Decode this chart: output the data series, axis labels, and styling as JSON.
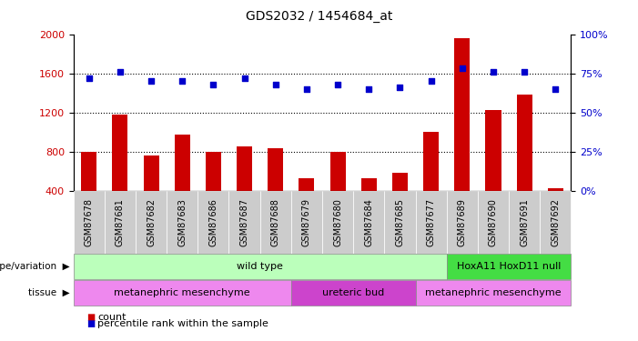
{
  "title": "GDS2032 / 1454684_at",
  "samples": [
    "GSM87678",
    "GSM87681",
    "GSM87682",
    "GSM87683",
    "GSM87686",
    "GSM87687",
    "GSM87688",
    "GSM87679",
    "GSM87680",
    "GSM87684",
    "GSM87685",
    "GSM87677",
    "GSM87689",
    "GSM87690",
    "GSM87691",
    "GSM87692"
  ],
  "counts": [
    800,
    1175,
    760,
    975,
    800,
    850,
    840,
    530,
    800,
    530,
    590,
    1000,
    1960,
    1230,
    1380,
    430
  ],
  "percentile_ranks": [
    72,
    76,
    70,
    70,
    68,
    72,
    68,
    65,
    68,
    65,
    66,
    70,
    78,
    76,
    76,
    65
  ],
  "ylim_left": [
    400,
    2000
  ],
  "ylim_right": [
    0,
    100
  ],
  "yticks_left": [
    400,
    800,
    1200,
    1600,
    2000
  ],
  "yticks_right": [
    0,
    25,
    50,
    75,
    100
  ],
  "bar_color": "#cc0000",
  "dot_color": "#0000cc",
  "bar_width": 0.5,
  "genotype_groups": [
    {
      "label": "wild type",
      "start": 0,
      "end": 11,
      "color": "#bbffbb"
    },
    {
      "label": "HoxA11 HoxD11 null",
      "start": 12,
      "end": 15,
      "color": "#44dd44"
    }
  ],
  "tissue_groups": [
    {
      "label": "metanephric mesenchyme",
      "start": 0,
      "end": 6,
      "color": "#ee88ee"
    },
    {
      "label": "ureteric bud",
      "start": 7,
      "end": 10,
      "color": "#cc44cc"
    },
    {
      "label": "metanephric mesenchyme",
      "start": 11,
      "end": 15,
      "color": "#ee88ee"
    }
  ],
  "plot_bg_color": "#ffffff",
  "xlabel_color": "#cc0000",
  "ylabel_right_color": "#0000cc",
  "tick_label_bg": "#cccccc",
  "grid_color": "black",
  "grid_linestyle": ":",
  "grid_linewidth": 0.8
}
